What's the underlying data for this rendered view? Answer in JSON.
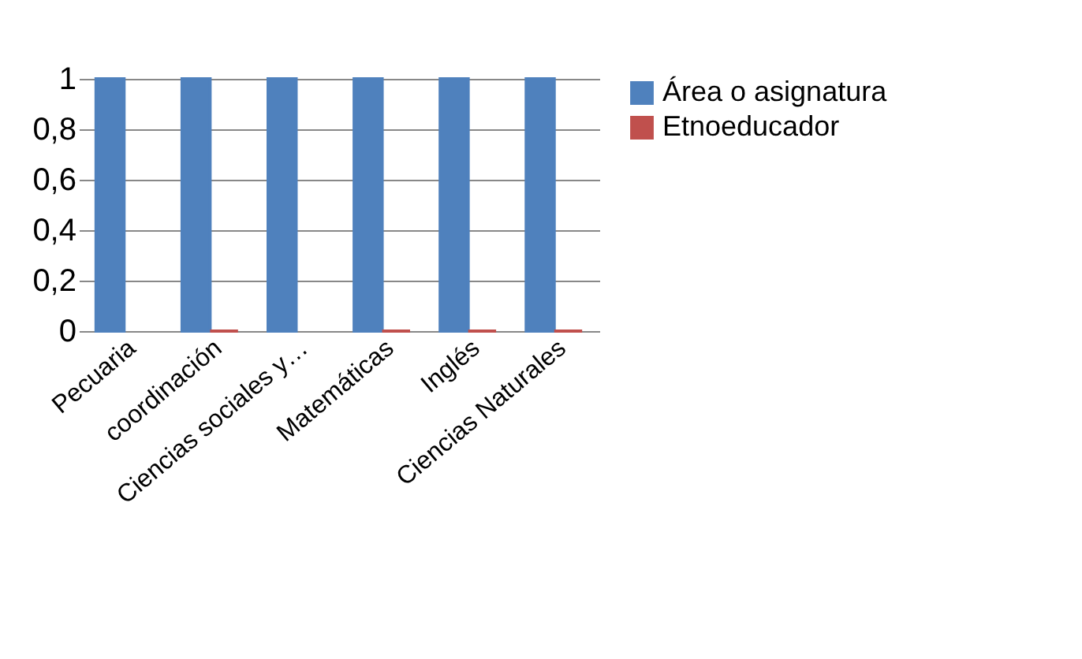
{
  "chart_data": {
    "type": "bar",
    "categories": [
      "Pecuaria",
      "coordinación",
      "Ciencias sociales y…",
      "Matemáticas",
      "Inglés",
      "Ciencias Naturales"
    ],
    "series": [
      {
        "name": "Área o asignatura",
        "color": "#4f81bd",
        "values": [
          1,
          1,
          1,
          1,
          1,
          1
        ]
      },
      {
        "name": "Etnoeducador",
        "color": "#c0504d",
        "values": [
          null,
          0,
          null,
          0,
          0,
          0
        ]
      }
    ],
    "ylim": [
      0,
      1
    ],
    "yticks": [
      {
        "value": 0,
        "label": "0"
      },
      {
        "value": 0.2,
        "label": "0,2"
      },
      {
        "value": 0.4,
        "label": "0,4"
      },
      {
        "value": 0.6,
        "label": "0,6"
      },
      {
        "value": 0.8,
        "label": "0,8"
      },
      {
        "value": 1,
        "label": "1"
      }
    ],
    "grid": "y",
    "legend": "right"
  }
}
